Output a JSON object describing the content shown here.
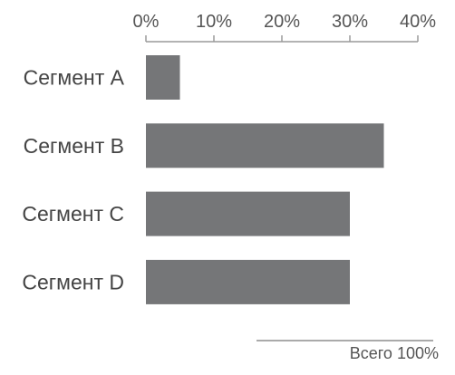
{
  "chart_data": {
    "type": "bar",
    "orientation": "horizontal",
    "categories": [
      "Сегмент A",
      "Сегмент B",
      "Сегмент C",
      "Сегмент D"
    ],
    "values": [
      5,
      35,
      30,
      30
    ],
    "xlim": [
      0,
      40
    ],
    "ticks": [
      0,
      10,
      20,
      30,
      40
    ],
    "tick_labels": [
      "0%",
      "10%",
      "20%",
      "30%",
      "40%"
    ],
    "axis_position": "top",
    "grid": false,
    "legend": "none",
    "bar_color": "#757678",
    "axis_color": "#9a9a9a",
    "total_note": "Всего 100%"
  }
}
